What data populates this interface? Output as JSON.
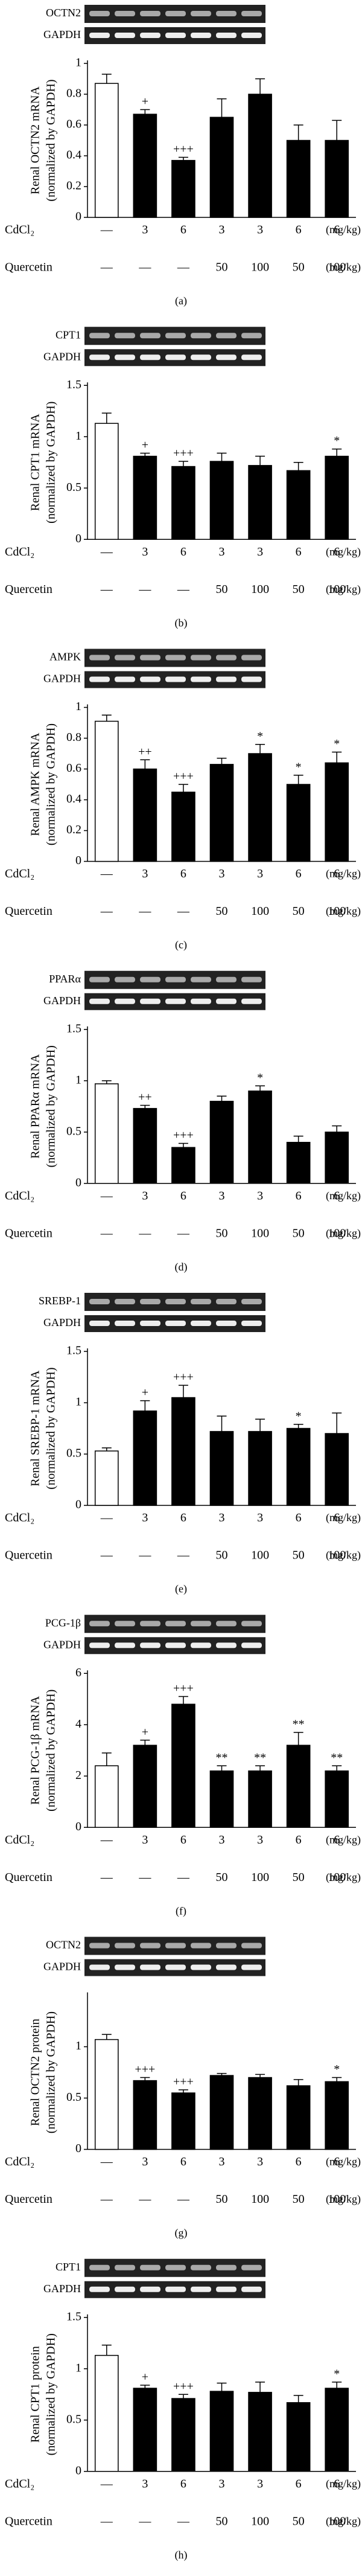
{
  "chart_data": [
    {
      "type": "bar",
      "panel": "(a)",
      "gel_labels": [
        "OCTN2",
        "GAPDH"
      ],
      "ylabel": [
        "Renal OCTN2 mRNA",
        "(normalized by GAPDH)"
      ],
      "values": [
        0.87,
        0.67,
        0.37,
        0.65,
        0.8,
        0.5,
        0.5
      ],
      "errors": [
        0.06,
        0.03,
        0.02,
        0.12,
        0.1,
        0.1,
        0.13
      ],
      "significance": [
        null,
        "+",
        "+++",
        null,
        null,
        null,
        null
      ],
      "colors": [
        "#ffffff",
        "#000000",
        "#000000",
        "#000000",
        "#000000",
        "#000000",
        "#000000"
      ],
      "ylim": [
        0,
        1
      ],
      "yticks": [
        0,
        0.2,
        0.4,
        0.6,
        0.8,
        1
      ],
      "treatment_rows": [
        {
          "name": "CdCl₂",
          "labels": [
            "—",
            "3",
            "6",
            "3",
            "3",
            "6",
            "6"
          ],
          "unit": "(mg/kg)"
        },
        {
          "name": "Quercetin",
          "labels": [
            "—",
            "—",
            "—",
            "50",
            "100",
            "50",
            "100"
          ],
          "unit": "(mg/kg)"
        }
      ]
    },
    {
      "type": "bar",
      "panel": "(b)",
      "gel_labels": [
        "CPT1",
        "GAPDH"
      ],
      "ylabel": [
        "Renal CPT1 mRNA",
        "(normalized by GAPDH)"
      ],
      "values": [
        1.13,
        0.81,
        0.71,
        0.76,
        0.72,
        0.67,
        0.81
      ],
      "errors": [
        0.1,
        0.03,
        0.05,
        0.08,
        0.09,
        0.08,
        0.07
      ],
      "significance": [
        null,
        "+",
        "+++",
        null,
        null,
        null,
        "*"
      ],
      "colors": [
        "#ffffff",
        "#000000",
        "#000000",
        "#000000",
        "#000000",
        "#000000",
        "#000000"
      ],
      "ylim": [
        0,
        1.5
      ],
      "yticks": [
        0,
        0.5,
        1,
        1.5
      ],
      "treatment_rows": [
        {
          "name": "CdCl₂",
          "labels": [
            "—",
            "3",
            "6",
            "3",
            "3",
            "6",
            "6"
          ],
          "unit": "(mg/kg)"
        },
        {
          "name": "Quercetin",
          "labels": [
            "—",
            "—",
            "—",
            "50",
            "100",
            "50",
            "100"
          ],
          "unit": "(mg/kg)"
        }
      ]
    },
    {
      "type": "bar",
      "panel": "(c)",
      "gel_labels": [
        "AMPK",
        "GAPDH"
      ],
      "ylabel": [
        "Renal AMPK mRNA",
        "(normalized by GAPDH)"
      ],
      "values": [
        0.91,
        0.6,
        0.45,
        0.63,
        0.7,
        0.5,
        0.64
      ],
      "errors": [
        0.04,
        0.06,
        0.05,
        0.04,
        0.06,
        0.06,
        0.07
      ],
      "significance": [
        null,
        "++",
        "+++",
        null,
        "*",
        "*",
        "*"
      ],
      "colors": [
        "#ffffff",
        "#000000",
        "#000000",
        "#000000",
        "#000000",
        "#000000",
        "#000000"
      ],
      "ylim": [
        0,
        1
      ],
      "yticks": [
        0,
        0.2,
        0.4,
        0.6,
        0.8,
        1
      ],
      "treatment_rows": [
        {
          "name": "CdCl₂",
          "labels": [
            "—",
            "3",
            "6",
            "3",
            "3",
            "6",
            "6"
          ],
          "unit": "(mg/kg)"
        },
        {
          "name": "Quercetin",
          "labels": [
            "—",
            "—",
            "—",
            "50",
            "100",
            "50",
            "100"
          ],
          "unit": "(mg/kg)"
        }
      ]
    },
    {
      "type": "bar",
      "panel": "(d)",
      "gel_labels": [
        "PPARα",
        "GAPDH"
      ],
      "ylabel": [
        "Renal PPARα mRNA",
        "(normalized by GAPDH)"
      ],
      "values": [
        0.97,
        0.73,
        0.35,
        0.8,
        0.9,
        0.4,
        0.5
      ],
      "errors": [
        0.03,
        0.03,
        0.04,
        0.05,
        0.05,
        0.06,
        0.06
      ],
      "significance": [
        null,
        "++",
        "+++",
        null,
        "*",
        null,
        null
      ],
      "colors": [
        "#ffffff",
        "#000000",
        "#000000",
        "#000000",
        "#000000",
        "#000000",
        "#000000"
      ],
      "ylim": [
        0,
        1.5
      ],
      "yticks": [
        0,
        0.5,
        1,
        1.5
      ],
      "treatment_rows": [
        {
          "name": "CdCl₂",
          "labels": [
            "—",
            "3",
            "6",
            "3",
            "3",
            "6",
            "6"
          ],
          "unit": "(mg/kg)"
        },
        {
          "name": "Quercetin",
          "labels": [
            "—",
            "—",
            "—",
            "50",
            "100",
            "50",
            "100"
          ],
          "unit": "(mg/kg)"
        }
      ]
    },
    {
      "type": "bar",
      "panel": "(e)",
      "gel_labels": [
        "SREBP-1",
        "GAPDH"
      ],
      "ylabel": [
        "Renal SREBP-1 mRNA",
        "(normalized by GAPDH)"
      ],
      "values": [
        0.53,
        0.92,
        1.05,
        0.72,
        0.72,
        0.75,
        0.7
      ],
      "errors": [
        0.03,
        0.1,
        0.12,
        0.15,
        0.12,
        0.04,
        0.2
      ],
      "significance": [
        null,
        "+",
        "+++",
        null,
        null,
        "*",
        null
      ],
      "colors": [
        "#ffffff",
        "#000000",
        "#000000",
        "#000000",
        "#000000",
        "#000000",
        "#000000"
      ],
      "ylim": [
        0,
        1.5
      ],
      "yticks": [
        0,
        0.5,
        1,
        1.5
      ],
      "treatment_rows": [
        {
          "name": "CdCl₂",
          "labels": [
            "—",
            "3",
            "6",
            "3",
            "3",
            "6",
            "6"
          ],
          "unit": "(mg/kg)"
        },
        {
          "name": "Quercetin",
          "labels": [
            "—",
            "—",
            "—",
            "50",
            "100",
            "50",
            "100"
          ],
          "unit": "(mg/kg)"
        }
      ]
    },
    {
      "type": "bar",
      "panel": "(f)",
      "gel_labels": [
        "PCG-1β",
        "GAPDH"
      ],
      "ylabel": [
        "Renal PCG-1β mRNA",
        "(normalized by GAPDH)"
      ],
      "values": [
        2.4,
        3.2,
        4.8,
        2.2,
        2.2,
        3.2,
        2.2
      ],
      "errors": [
        0.5,
        0.2,
        0.3,
        0.2,
        0.2,
        0.5,
        0.2
      ],
      "significance": [
        null,
        "+",
        "+++",
        "**",
        "**",
        "**",
        "**"
      ],
      "colors": [
        "#ffffff",
        "#000000",
        "#000000",
        "#000000",
        "#000000",
        "#000000",
        "#000000"
      ],
      "ylim": [
        0,
        6
      ],
      "yticks": [
        0,
        2,
        4,
        6
      ],
      "treatment_rows": [
        {
          "name": "CdCl₂",
          "labels": [
            "—",
            "3",
            "6",
            "3",
            "3",
            "6",
            "6"
          ],
          "unit": "(mg/kg)"
        },
        {
          "name": "Quercetin",
          "labels": [
            "—",
            "—",
            "—",
            "50",
            "100",
            "50",
            "100"
          ],
          "unit": "(mg/kg)"
        }
      ]
    },
    {
      "type": "bar",
      "panel": "(g)",
      "gel_labels": [
        "OCTN2",
        "GAPDH"
      ],
      "ylabel": [
        "Renal OCTN2 protein",
        "(normalized by GAPDH)"
      ],
      "values": [
        1.07,
        0.67,
        0.55,
        0.72,
        0.7,
        0.62,
        0.66
      ],
      "errors": [
        0.05,
        0.03,
        0.03,
        0.02,
        0.03,
        0.06,
        0.04
      ],
      "significance": [
        null,
        "+++",
        "+++",
        null,
        null,
        null,
        "*"
      ],
      "colors": [
        "#ffffff",
        "#000000",
        "#000000",
        "#000000",
        "#000000",
        "#000000",
        "#000000"
      ],
      "ylim": [
        0,
        1.5
      ],
      "yticks": [
        0,
        0.5,
        1
      ],
      "treatment_rows": [
        {
          "name": "CdCl₂",
          "labels": [
            "—",
            "3",
            "6",
            "3",
            "3",
            "6",
            "6"
          ],
          "unit": "(mg/kg)"
        },
        {
          "name": "Quercetin",
          "labels": [
            "—",
            "—",
            "—",
            "50",
            "100",
            "50",
            "100"
          ],
          "unit": "(mg/kg)"
        }
      ]
    },
    {
      "type": "bar",
      "panel": "(h)",
      "gel_labels": [
        "CPT1",
        "GAPDH"
      ],
      "ylabel": [
        "Renal CPT1 protein",
        "(normalized by GAPDH)"
      ],
      "values": [
        1.13,
        0.81,
        0.71,
        0.78,
        0.77,
        0.67,
        0.81
      ],
      "errors": [
        0.1,
        0.03,
        0.04,
        0.08,
        0.1,
        0.07,
        0.06
      ],
      "significance": [
        null,
        "+",
        "+++",
        null,
        null,
        null,
        "*"
      ],
      "colors": [
        "#ffffff",
        "#000000",
        "#000000",
        "#000000",
        "#000000",
        "#000000",
        "#000000"
      ],
      "ylim": [
        0,
        1.5
      ],
      "yticks": [
        0,
        0.5,
        1,
        1.5
      ],
      "treatment_rows": [
        {
          "name": "CdCl₂",
          "labels": [
            "—",
            "3",
            "6",
            "3",
            "3",
            "6",
            "6"
          ],
          "unit": "(mg/kg)"
        },
        {
          "name": "Quercetin",
          "labels": [
            "—",
            "—",
            "—",
            "50",
            "100",
            "50",
            "100"
          ],
          "unit": "(mg/kg)"
        }
      ]
    }
  ]
}
